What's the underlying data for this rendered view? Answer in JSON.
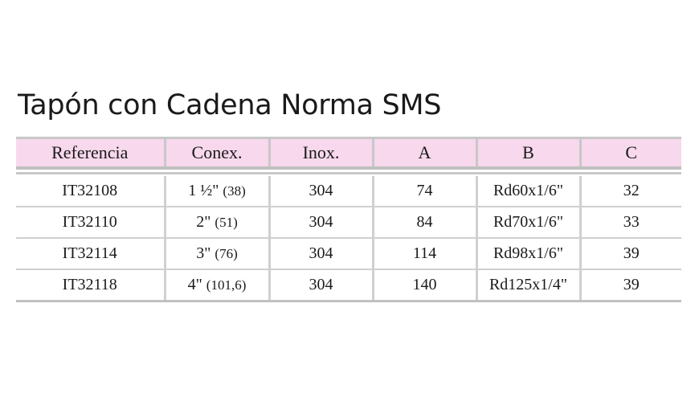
{
  "title": "Tapón con Cadena Norma SMS",
  "headers": [
    "Referencia",
    "Conex.",
    "Inox.",
    "A",
    "B",
    "C"
  ],
  "rows": [
    {
      "ref": "IT32108",
      "conex_main": "1 ½\"",
      "conex_sub": "(38)",
      "inox": "304",
      "a": "74",
      "b": "Rd60x1/6\"",
      "c": "32"
    },
    {
      "ref": "IT32110",
      "conex_main": "2\"",
      "conex_sub": "(51)",
      "inox": "304",
      "a": "84",
      "b": "Rd70x1/6\"",
      "c": "33"
    },
    {
      "ref": "IT32114",
      "conex_main": "3\"",
      "conex_sub": "(76)",
      "inox": "304",
      "a": "114",
      "b": "Rd98x1/6\"",
      "c": "39"
    },
    {
      "ref": "IT32118",
      "conex_main": "4\"",
      "conex_sub": "(101,6)",
      "inox": "304",
      "a": "140",
      "b": "Rd125x1/4\"",
      "c": "39"
    }
  ],
  "colors": {
    "header_bg": "#f7d8ec",
    "rule": "#c8c8c8",
    "text": "#1a1a1a"
  }
}
